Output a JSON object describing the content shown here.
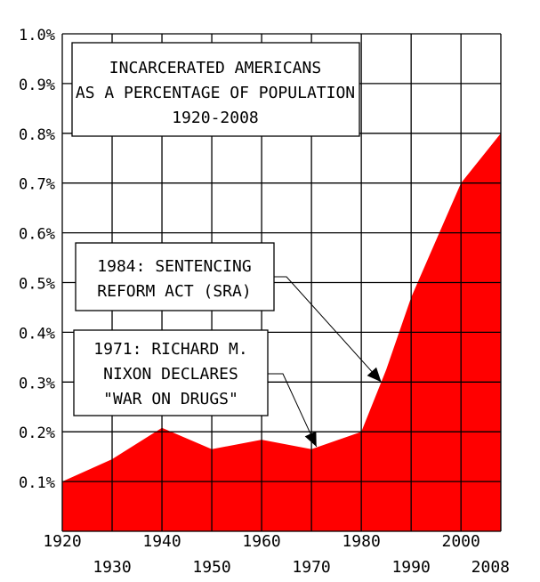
{
  "chart_data": {
    "type": "area",
    "title_lines": [
      "INCARCERATED AMERICANS",
      "AS A PERCENTAGE OF POPULATION",
      "1920-2008"
    ],
    "xlabel": "",
    "ylabel": "",
    "x": [
      1920,
      1930,
      1940,
      1950,
      1960,
      1970,
      1980,
      1985,
      1990,
      2000,
      2008
    ],
    "values": [
      0.1,
      0.145,
      0.208,
      0.165,
      0.184,
      0.165,
      0.2,
      0.325,
      0.47,
      0.7,
      0.8
    ],
    "unit": "%",
    "xlim": [
      1920,
      2008
    ],
    "ylim": [
      0,
      1.0
    ],
    "x_ticks": [
      1920,
      1930,
      1940,
      1950,
      1960,
      1970,
      1980,
      1990,
      2000,
      2008
    ],
    "y_ticks": [
      "0.1%",
      "0.2%",
      "0.3%",
      "0.4%",
      "0.5%",
      "0.6%",
      "0.7%",
      "0.8%",
      "0.9%",
      "1.0%"
    ],
    "y_tick_values": [
      0.1,
      0.2,
      0.3,
      0.4,
      0.5,
      0.6,
      0.7,
      0.8,
      0.9,
      1.0
    ],
    "grid": true,
    "fill_color": "#ff0000",
    "annotations": [
      {
        "lines": [
          "1984: SENTENCING",
          "REFORM ACT (SRA)"
        ],
        "x": 1984,
        "y": 0.3
      },
      {
        "lines": [
          "1971: RICHARD M.",
          "NIXON DECLARES",
          "\"WAR ON DRUGS\""
        ],
        "x": 1971,
        "y": 0.17
      }
    ]
  }
}
